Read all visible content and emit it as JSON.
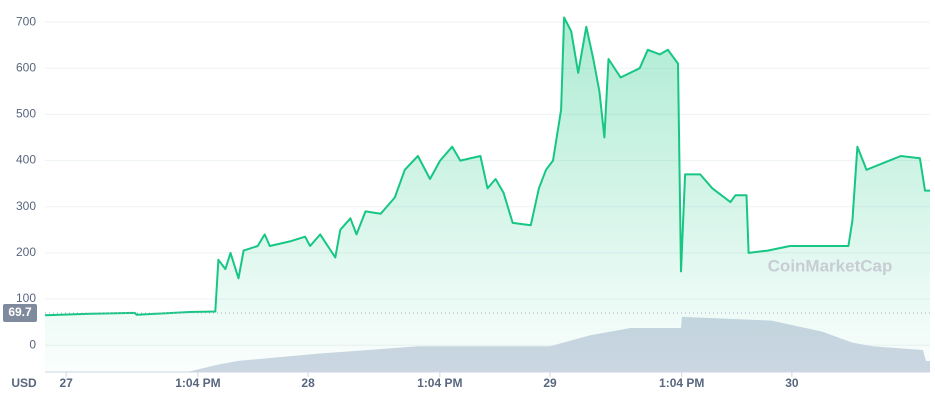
{
  "chart_data": {
    "type": "line",
    "currency_label": "USD",
    "watermark": "CoinMarketCap",
    "baseline": 69.7,
    "xlim": [
      -2.1,
      85.7
    ],
    "xticks": [
      {
        "value": 0,
        "label": "27"
      },
      {
        "value": 13.07,
        "label": "1:04 PM"
      },
      {
        "value": 24,
        "label": "28"
      },
      {
        "value": 37.07,
        "label": "1:04 PM"
      },
      {
        "value": 48,
        "label": "29"
      },
      {
        "value": 61.07,
        "label": "1:04 PM"
      },
      {
        "value": 72,
        "label": "30"
      }
    ],
    "ylim": [
      -58,
      737
    ],
    "yticks": [
      0,
      100,
      200,
      300,
      400,
      500,
      600,
      700
    ],
    "y2lim": [
      0,
      100
    ],
    "grid": true,
    "series": [
      {
        "color": "#16c784",
        "x": [
          -2.1,
          2.4,
          6.8,
          7.0,
          12.3,
          14.8,
          15.1,
          15.8,
          16.3,
          17.1,
          17.6,
          19.0,
          19.7,
          20.2,
          22.2,
          23.7,
          24.2,
          25.2,
          26.7,
          27.2,
          28.2,
          28.8,
          29.7,
          31.2,
          32.6,
          33.6,
          34.9,
          36.1,
          37.1,
          38.3,
          39.1,
          41.1,
          41.8,
          42.6,
          43.4,
          44.3,
          46.1,
          46.9,
          47.6,
          48.3,
          49.1,
          49.4,
          50.1,
          50.8,
          51.6,
          52.3,
          52.9,
          53.4,
          53.8,
          55.0,
          56.9,
          57.7,
          58.9,
          59.7,
          60.7,
          61.0,
          61.4,
          62.9,
          64.1,
          65.9,
          66.4,
          67.5,
          67.7,
          69.6,
          71.8,
          77.6,
          78.0,
          78.5,
          79.4,
          82.8,
          84.7,
          85.2,
          85.7
        ],
        "values": [
          65,
          68,
          70,
          66,
          72,
          73,
          185,
          165,
          200,
          145,
          205,
          215,
          240,
          215,
          225,
          235,
          215,
          240,
          190,
          250,
          275,
          240,
          290,
          285,
          320,
          380,
          410,
          360,
          400,
          430,
          400,
          410,
          340,
          360,
          330,
          265,
          260,
          340,
          380,
          400,
          510,
          710,
          680,
          590,
          690,
          620,
          550,
          450,
          620,
          580,
          600,
          640,
          630,
          640,
          610,
          160,
          370,
          370,
          340,
          310,
          325,
          325,
          200,
          205,
          215,
          215,
          270,
          430,
          380,
          410,
          405,
          335,
          335
        ]
      },
      {
        "color": "#cfd6e4",
        "axis": "y2",
        "x": [
          -2.1,
          12,
          15,
          17,
          25,
          35,
          48,
          52,
          56,
          61,
          61.1,
          70,
          75,
          78,
          80,
          85,
          85.3,
          85.7
        ],
        "values": [
          0,
          0,
          2,
          3,
          5,
          7,
          7,
          10,
          12,
          12,
          15,
          14,
          11,
          8,
          7,
          6,
          3,
          3
        ]
      }
    ]
  }
}
